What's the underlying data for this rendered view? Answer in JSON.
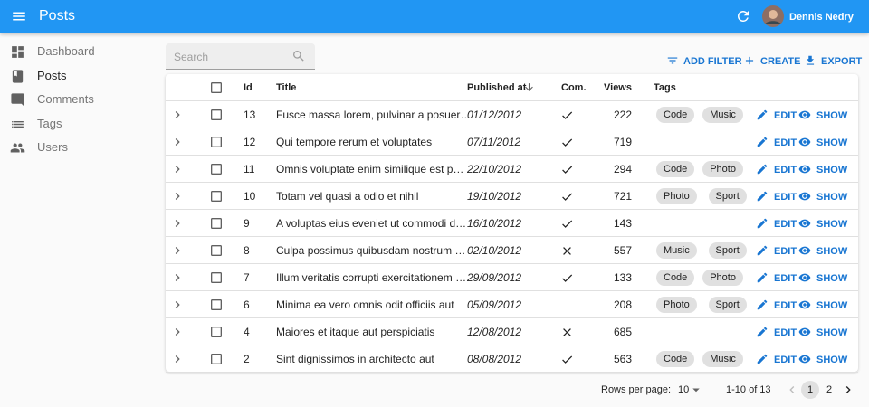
{
  "app_bar": {
    "title": "Posts",
    "user": "Dennis Nedry"
  },
  "menu": [
    "Dashboard",
    "Posts",
    "Comments",
    "Tags",
    "Users"
  ],
  "search_placeholder": "Search",
  "actions": [
    "ADD FILTER",
    "CREATE",
    "EXPORT"
  ],
  "table": {
    "columns": [
      "Id",
      "Title",
      "Published at",
      "Com.",
      "Views",
      "Tags"
    ],
    "rows": [
      {
        "id": "13",
        "title": "Fusce massa lorem, pulvinar a posuer…",
        "published_at": "01/12/2012",
        "commentable": true,
        "views": "222",
        "tags": [
          "Code",
          "Music"
        ]
      },
      {
        "id": "12",
        "title": "Qui tempore rerum et voluptates",
        "published_at": "07/11/2012",
        "commentable": true,
        "views": "719",
        "tags": []
      },
      {
        "id": "11",
        "title": "Omnis voluptate enim similique est p…",
        "published_at": "22/10/2012",
        "commentable": true,
        "views": "294",
        "tags": [
          "Code",
          "Photo"
        ]
      },
      {
        "id": "10",
        "title": "Totam vel quasi a odio et nihil",
        "published_at": "19/10/2012",
        "commentable": true,
        "views": "721",
        "tags": [
          "Photo",
          "Sport"
        ]
      },
      {
        "id": "9",
        "title": "A voluptas eius eveniet ut commodi d…",
        "published_at": "16/10/2012",
        "commentable": true,
        "views": "143",
        "tags": []
      },
      {
        "id": "8",
        "title": "Culpa possimus quibusdam nostrum …",
        "published_at": "02/10/2012",
        "commentable": false,
        "views": "557",
        "tags": [
          "Music",
          "Sport"
        ]
      },
      {
        "id": "7",
        "title": "Illum veritatis corrupti exercitationem …",
        "published_at": "29/09/2012",
        "commentable": true,
        "views": "133",
        "tags": [
          "Code",
          "Photo"
        ]
      },
      {
        "id": "6",
        "title": "Minima ea vero omnis odit officiis aut",
        "published_at": "05/09/2012",
        "commentable": null,
        "views": "208",
        "tags": [
          "Photo",
          "Sport"
        ]
      },
      {
        "id": "4",
        "title": "Maiores et itaque aut perspiciatis",
        "published_at": "12/08/2012",
        "commentable": false,
        "views": "685",
        "tags": []
      },
      {
        "id": "2",
        "title": "Sint dignissimos in architecto aut",
        "published_at": "08/08/2012",
        "commentable": true,
        "views": "563",
        "tags": [
          "Code",
          "Music"
        ]
      }
    ]
  },
  "row_actions": [
    "EDIT",
    "SHOW"
  ],
  "pagination": {
    "rows_per_page_label": "Rows per page:",
    "rows_per_page": "10",
    "range": "1-10 of 13",
    "pages": [
      "1",
      "2"
    ]
  }
}
